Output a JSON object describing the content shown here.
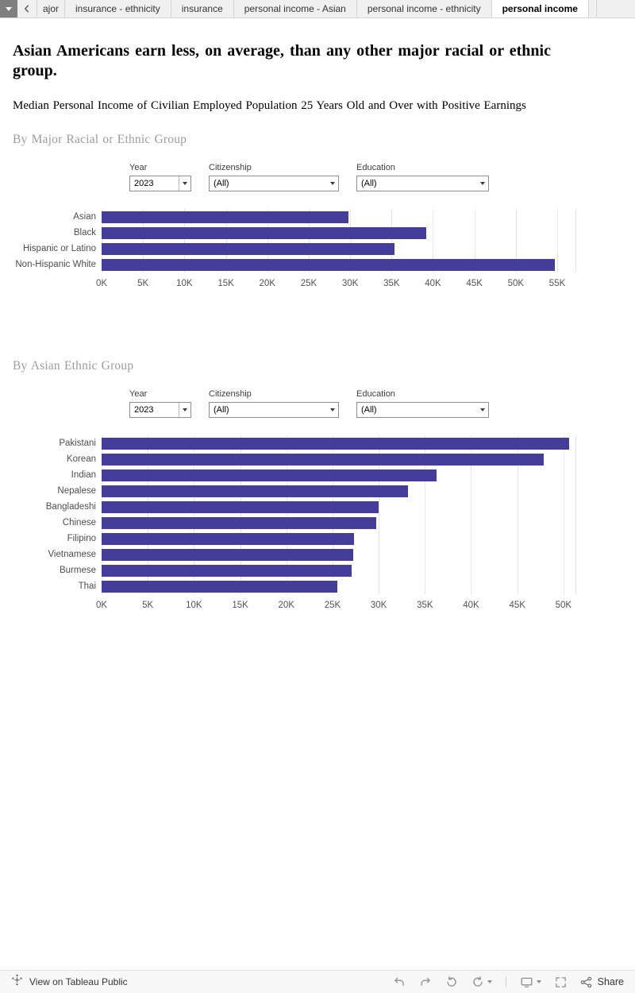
{
  "tabbar": {
    "tabs": [
      {
        "label": "ajor",
        "partial": true
      },
      {
        "label": "insurance - ethnicity"
      },
      {
        "label": "insurance"
      },
      {
        "label": "personal income - Asian"
      },
      {
        "label": "personal income - ethnicity"
      },
      {
        "label": "personal income",
        "active": true
      },
      {
        "label": "",
        "stub": true
      }
    ]
  },
  "header": {
    "title": "Asian Americans earn less, on average, than any other major racial or ethnic group.",
    "subtitle": "Median Personal Income of Civilian Employed Population 25 Years Old and Over with Positive Earnings"
  },
  "sections": [
    {
      "heading": "By Major Racial or Ethnic Group",
      "filters": [
        {
          "label": "Year",
          "value": "2023"
        },
        {
          "label": "Citizenship",
          "value": "(All)"
        },
        {
          "label": "Education",
          "value": "(All)"
        }
      ]
    },
    {
      "heading": "By Asian Ethnic Group",
      "filters": [
        {
          "label": "Year",
          "value": "2023"
        },
        {
          "label": "Citizenship",
          "value": "(All)"
        },
        {
          "label": "Education",
          "value": "(All)"
        }
      ]
    }
  ],
  "chart_data": [
    {
      "type": "bar",
      "orientation": "horizontal",
      "title": "By Major Racial or Ethnic Group",
      "categories": [
        "Asian",
        "Black",
        "Hispanic or Latino",
        "Non-Hispanic White"
      ],
      "values": [
        29800,
        39200,
        35400,
        54700
      ],
      "tick_values": [
        0,
        5000,
        10000,
        15000,
        20000,
        25000,
        30000,
        35000,
        40000,
        45000,
        50000,
        55000
      ],
      "x_tick_labels": [
        "0K",
        "5K",
        "10K",
        "15K",
        "20K",
        "25K",
        "30K",
        "35K",
        "40K",
        "45K",
        "50K",
        "55K"
      ],
      "axis_max": 57200,
      "grid": true,
      "bar_color": "#443d99"
    },
    {
      "type": "bar",
      "orientation": "horizontal",
      "title": "By Asian Ethnic Group",
      "categories": [
        "Pakistani",
        "Korean",
        "Indian",
        "Nepalese",
        "Bangladeshi",
        "Chinese",
        "Filipino",
        "Vietnamese",
        "Burmese",
        "Thai"
      ],
      "values": [
        50600,
        47900,
        36300,
        33200,
        30000,
        29700,
        27300,
        27200,
        27100,
        25500
      ],
      "tick_values": [
        0,
        5000,
        10000,
        15000,
        20000,
        25000,
        30000,
        35000,
        40000,
        45000,
        50000
      ],
      "x_tick_labels": [
        "0K",
        "5K",
        "10K",
        "15K",
        "20K",
        "25K",
        "30K",
        "35K",
        "40K",
        "45K",
        "50K"
      ],
      "axis_max": 51300,
      "grid": true,
      "bar_color": "#443d99"
    }
  ],
  "footer": {
    "view_text": "View on Tableau Public",
    "share_label": "Share",
    "icons": [
      "undo",
      "redo",
      "revert",
      "refresh",
      "download-display",
      "fullscreen",
      "share"
    ]
  }
}
